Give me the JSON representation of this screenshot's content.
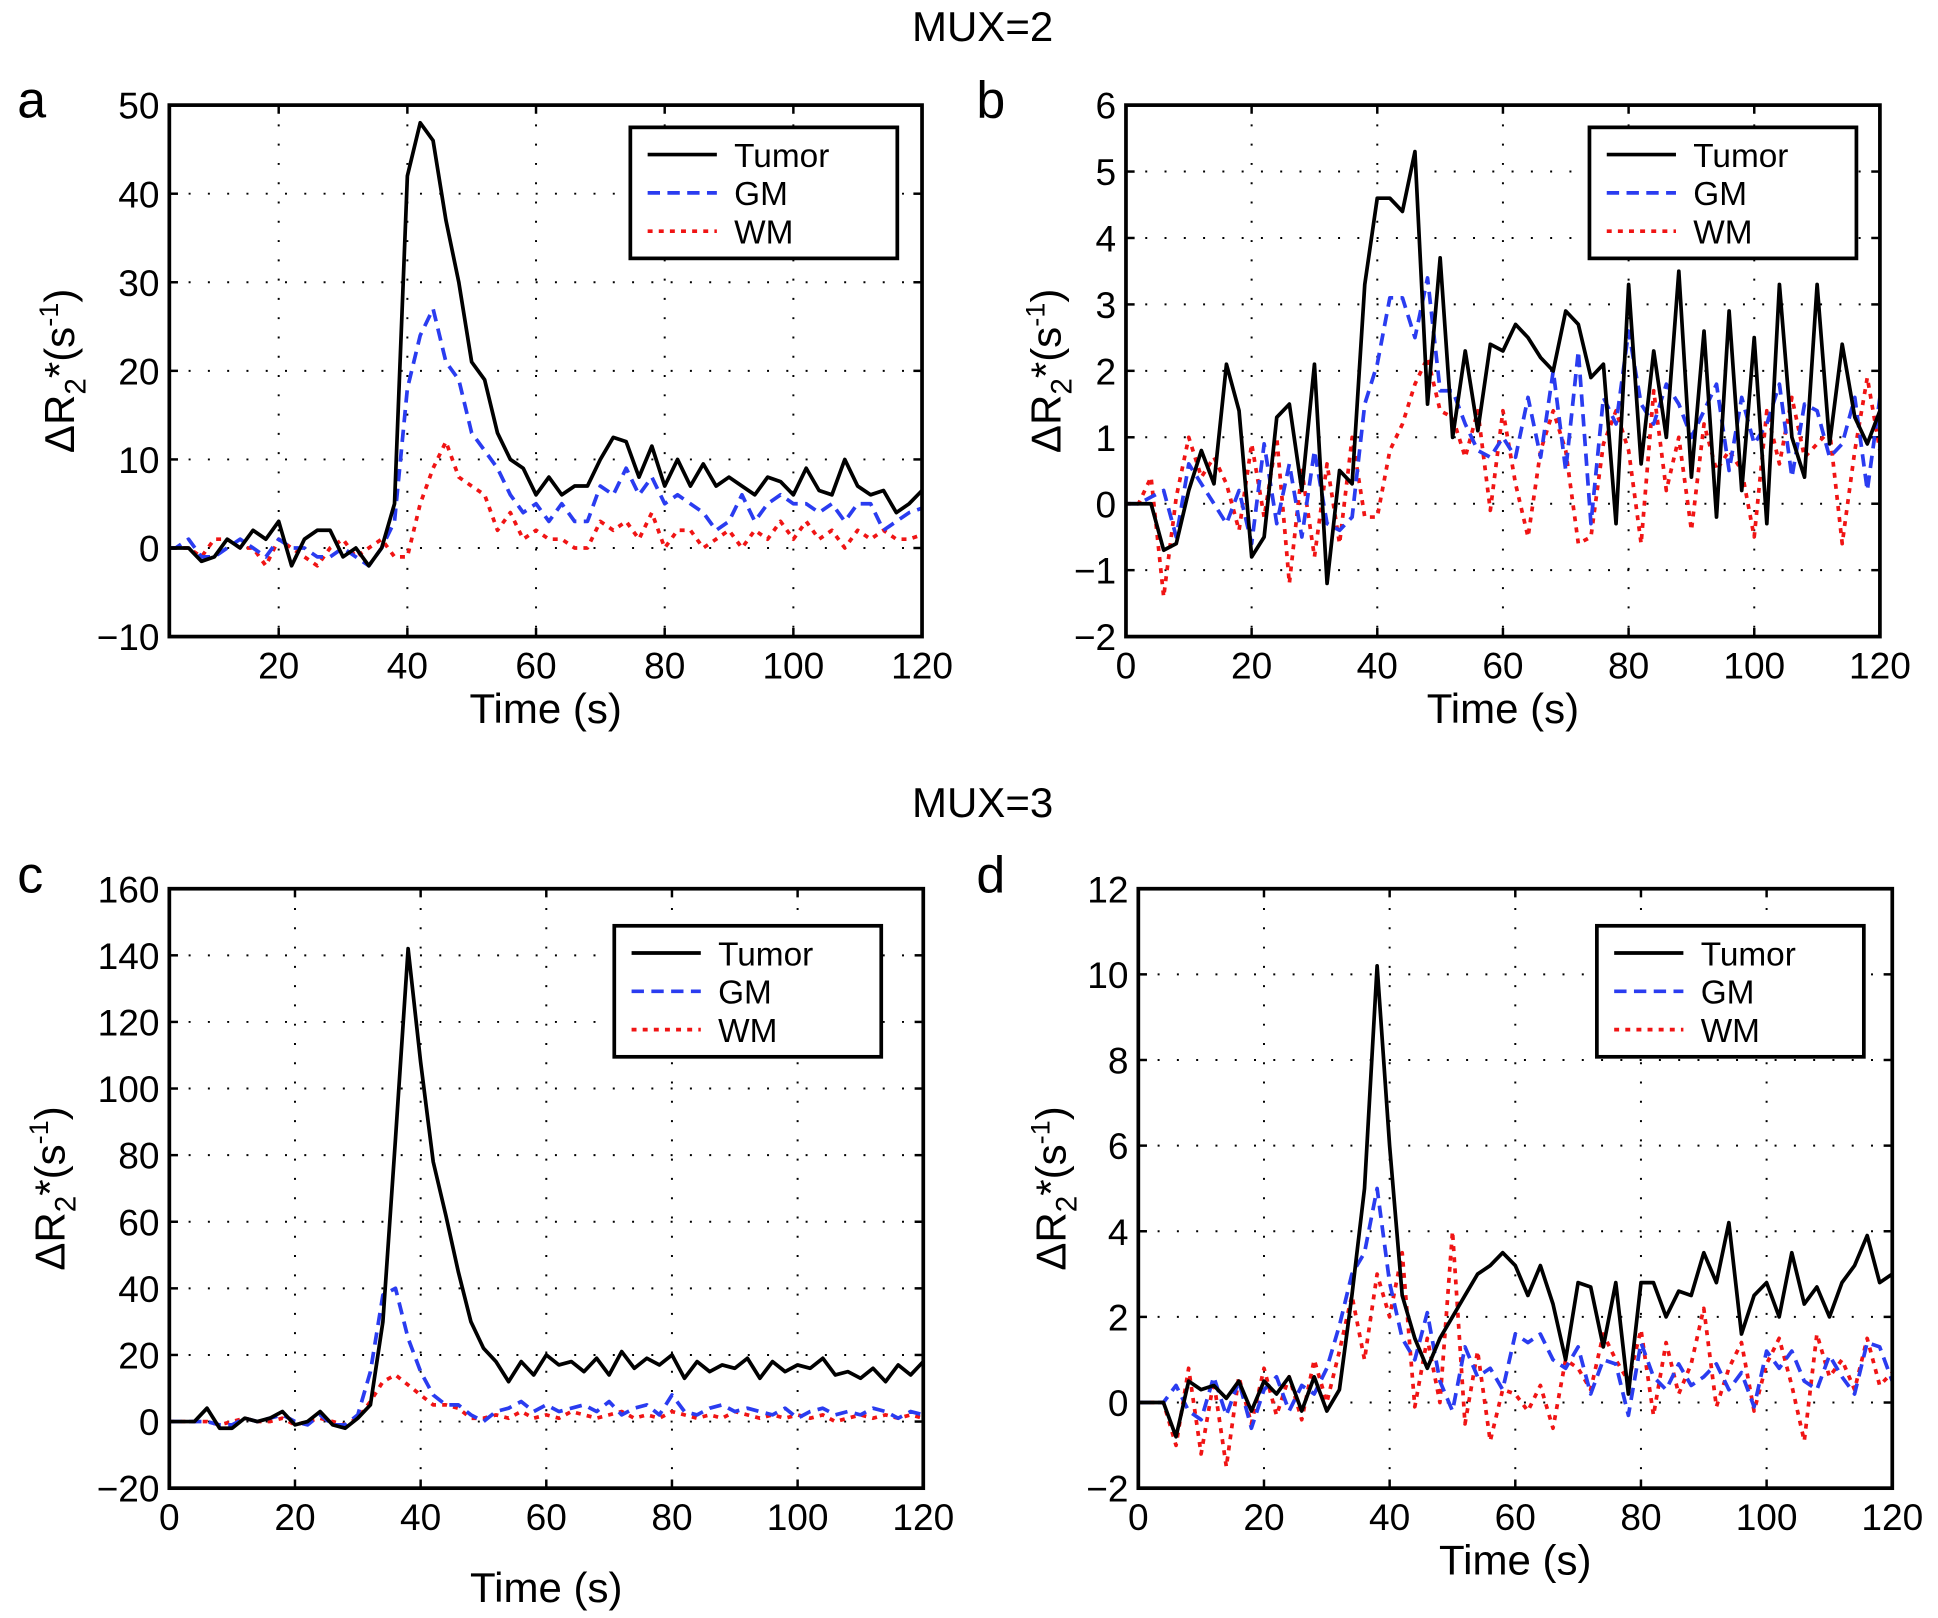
{
  "titles": {
    "mux2": "MUX=2",
    "mux3": "MUX=3"
  },
  "ylabel_parts": {
    "base": "ΔR",
    "sub": "2",
    "mid": "*(s",
    "sup": "-1",
    "end": ")"
  },
  "colors": {
    "Tumor": "#000000",
    "GM": "#2a3cf0",
    "WM": "#f01414"
  },
  "chart_data": [
    {
      "type": "line",
      "panel": "a",
      "title": "MUX=2",
      "xlabel": "Time (s)",
      "ylabel": "ΔR2*(s-1)",
      "xlim": [
        3,
        120
      ],
      "ylim": [
        -10,
        50
      ],
      "xticks": [
        20,
        40,
        60,
        80,
        100,
        120
      ],
      "yticks": [
        -10,
        0,
        10,
        20,
        30,
        40,
        50
      ],
      "grid": true,
      "legend": "top-right",
      "x_step": 2,
      "series": [
        {
          "name": "Tumor",
          "style": "solid",
          "values": [
            0,
            0,
            0,
            0,
            -1.5,
            -1,
            1,
            0,
            2,
            1,
            3,
            -2,
            1,
            2,
            2,
            -1,
            0,
            -2,
            0,
            5,
            42,
            48,
            46,
            37,
            30,
            21,
            19,
            13,
            10,
            9,
            6,
            8,
            6,
            7,
            7,
            10,
            12.5,
            12,
            8,
            11.5,
            7,
            10,
            7,
            9.5,
            7,
            8,
            7,
            6,
            8,
            7.5,
            6,
            9,
            6.5,
            6,
            10,
            7,
            6,
            6.5,
            4,
            5,
            6.5
          ]
        },
        {
          "name": "GM",
          "style": "dashed",
          "values": [
            0,
            0,
            0,
            1,
            -1,
            -1,
            0,
            1,
            0,
            -1,
            1,
            0,
            0,
            -1,
            -1,
            0,
            -1,
            -2,
            0,
            3,
            18,
            24,
            27,
            21,
            19,
            13,
            11,
            9,
            6,
            4,
            5,
            3,
            5,
            3,
            3,
            7,
            6,
            9,
            6,
            8,
            5,
            6,
            5,
            4,
            2,
            3,
            6,
            3,
            5,
            6,
            5,
            5,
            4,
            5,
            3,
            5,
            5,
            2,
            3,
            4,
            4.5
          ]
        },
        {
          "name": "WM",
          "style": "dotted",
          "values": [
            0,
            0,
            0,
            0,
            -1,
            1,
            1,
            0,
            0,
            -2,
            1,
            0,
            -1,
            -2,
            0,
            1,
            -1,
            0,
            1,
            -1,
            -1,
            5,
            9,
            12,
            8,
            7,
            6,
            2,
            4,
            1,
            2,
            1,
            1,
            0,
            0,
            3,
            2,
            3,
            1,
            4,
            0,
            2,
            2,
            0,
            1,
            2,
            0,
            2,
            1,
            3,
            1,
            3,
            1,
            2,
            0,
            2,
            1,
            2,
            1,
            1,
            1.5
          ]
        }
      ]
    },
    {
      "type": "line",
      "panel": "b",
      "title": "MUX=2",
      "xlabel": "Time (s)",
      "ylabel": "ΔR2*(s-1)",
      "xlim": [
        0,
        120
      ],
      "ylim": [
        -2,
        6
      ],
      "xticks": [
        0,
        20,
        40,
        60,
        80,
        100,
        120
      ],
      "yticks": [
        -2,
        -1,
        0,
        1,
        2,
        3,
        4,
        5,
        6
      ],
      "grid": true,
      "legend": "top-right",
      "x_step": 2,
      "series": [
        {
          "name": "Tumor",
          "style": "solid",
          "values": [
            0,
            0,
            0,
            -0.7,
            -0.6,
            0.2,
            0.8,
            0.3,
            2.1,
            1.4,
            -0.8,
            -0.5,
            1.3,
            1.5,
            0.2,
            2.1,
            -1.2,
            0.5,
            0.3,
            3.3,
            4.6,
            4.6,
            4.4,
            5.3,
            1.5,
            3.7,
            1,
            2.3,
            1.1,
            2.4,
            2.3,
            2.7,
            2.5,
            2.2,
            2,
            2.9,
            2.7,
            1.9,
            2.1,
            -0.3,
            3.3,
            0.6,
            2.3,
            1,
            3.5,
            0.4,
            2.6,
            -0.2,
            2.9,
            0.2,
            2.5,
            -0.3,
            3.3,
            1,
            0.4,
            3.3,
            0.9,
            2.4,
            1.3,
            0.9,
            1.4
          ]
        },
        {
          "name": "GM",
          "style": "dashed",
          "values": [
            0,
            0,
            0.1,
            0.2,
            -0.5,
            0.6,
            0.3,
            0,
            -0.3,
            0.2,
            -0.6,
            0.9,
            -0.3,
            0.6,
            -0.5,
            0.8,
            -0.3,
            -0.4,
            -0.2,
            1.5,
            2.1,
            3.1,
            3.1,
            2.5,
            3.4,
            1.7,
            1.7,
            1.2,
            0.8,
            0.7,
            1,
            0.7,
            1.6,
            0.7,
            2,
            0.5,
            2.3,
            -0.3,
            1.6,
            1.2,
            2.6,
            1.5,
            1.2,
            1.8,
            1.5,
            1,
            1.4,
            1.8,
            0.5,
            1.6,
            0.9,
            1.2,
            1.8,
            0.4,
            1.5,
            1.4,
            0.7,
            0.9,
            1.6,
            0.2,
            1.6
          ]
        },
        {
          "name": "WM",
          "style": "dotted",
          "values": [
            0,
            0,
            0.4,
            -1.4,
            0.1,
            1,
            0.4,
            0.7,
            0.3,
            -0.4,
            0.9,
            -0.2,
            1,
            -1.2,
            0.5,
            -0.8,
            0.6,
            -0.6,
            1,
            -0.2,
            -0.2,
            0.8,
            1.2,
            1.8,
            2.2,
            1.4,
            1.3,
            0.7,
            1.4,
            -0.1,
            1.4,
            0.3,
            -0.5,
            0.8,
            1.4,
            0.8,
            -0.6,
            -0.5,
            0.9,
            1.4,
            0.8,
            -0.6,
            1.7,
            0.2,
            1,
            -0.4,
            1.2,
            0.5,
            0.8,
            0.5,
            -0.5,
            1.4,
            0.6,
            1.6,
            0.7,
            0.9,
            1.1,
            -0.6,
            0.8,
            1.9,
            0.8
          ]
        }
      ]
    },
    {
      "type": "line",
      "panel": "c",
      "title": "MUX=3",
      "xlabel": "Time (s)",
      "ylabel": "ΔR2*(s-1)",
      "xlim": [
        0,
        120
      ],
      "ylim": [
        -20,
        160
      ],
      "xticks": [
        0,
        20,
        40,
        60,
        80,
        100,
        120
      ],
      "yticks": [
        -20,
        0,
        20,
        40,
        60,
        80,
        100,
        120,
        140,
        160
      ],
      "grid": true,
      "legend": "top-right",
      "x_step": 2,
      "series": [
        {
          "name": "Tumor",
          "style": "solid",
          "values": [
            0,
            0,
            0,
            4,
            -2,
            -2,
            1,
            0,
            1,
            3,
            -1,
            0,
            3,
            -1,
            -2,
            1,
            5,
            30,
            85,
            142,
            108,
            78,
            62,
            45,
            30,
            22,
            18,
            12,
            18,
            14,
            20,
            17,
            18,
            15,
            19,
            14,
            21,
            16,
            19,
            17,
            20,
            13,
            18,
            15,
            17,
            16,
            19,
            13,
            18,
            15,
            17,
            16,
            19,
            14,
            15,
            13,
            16,
            12,
            17,
            14,
            18
          ]
        },
        {
          "name": "GM",
          "style": "dashed",
          "values": [
            0,
            0,
            0,
            0,
            -1,
            -1,
            1,
            0,
            1,
            2,
            0,
            -1,
            2,
            -1,
            -1,
            2,
            15,
            38,
            40,
            25,
            15,
            8,
            5,
            5,
            2,
            0,
            3,
            4,
            6,
            3,
            5,
            3,
            4,
            5,
            3,
            6,
            2,
            4,
            5,
            2,
            8,
            3,
            2,
            4,
            5,
            3,
            4,
            3,
            2,
            4,
            1,
            3,
            4,
            2,
            3,
            2,
            4,
            3,
            1,
            3,
            2
          ]
        },
        {
          "name": "WM",
          "style": "dotted",
          "values": [
            0,
            0,
            0,
            0,
            -1,
            0,
            1,
            0,
            0,
            1,
            -1,
            0,
            1,
            0,
            -1,
            1,
            6,
            12,
            14,
            11,
            8,
            5,
            5,
            4,
            1,
            1,
            2,
            1,
            3,
            1,
            2,
            1,
            3,
            2,
            1,
            2,
            3,
            1,
            2,
            1,
            3,
            2,
            1,
            2,
            1,
            3,
            2,
            1,
            2,
            1,
            2,
            1,
            2,
            0,
            1,
            2,
            1,
            2,
            1,
            2,
            1
          ]
        }
      ]
    },
    {
      "type": "line",
      "panel": "d",
      "title": "MUX=3",
      "xlabel": "Time (s)",
      "ylabel": "ΔR2*(s-1)",
      "xlim": [
        0,
        120
      ],
      "ylim": [
        -2,
        12
      ],
      "xticks": [
        0,
        20,
        40,
        60,
        80,
        100,
        120
      ],
      "yticks": [
        -2,
        0,
        2,
        4,
        6,
        8,
        10,
        12
      ],
      "grid": true,
      "legend": "top-right",
      "x_step": 2,
      "series": [
        {
          "name": "Tumor",
          "style": "solid",
          "values": [
            0,
            0,
            0,
            -0.8,
            0.5,
            0.3,
            0.4,
            0.1,
            0.5,
            -0.2,
            0.5,
            0.2,
            0.6,
            -0.2,
            0.6,
            -0.2,
            0.3,
            2.5,
            5,
            10.2,
            6,
            2.5,
            1.5,
            0.8,
            1.5,
            2,
            2.5,
            3,
            3.2,
            3.5,
            3.2,
            2.5,
            3.2,
            2.3,
            1,
            2.8,
            2.7,
            1.3,
            2.8,
            0.2,
            2.8,
            2.8,
            2,
            2.6,
            2.5,
            3.5,
            2.8,
            4.2,
            1.6,
            2.5,
            2.8,
            2,
            3.5,
            2.3,
            2.7,
            2,
            2.8,
            3.2,
            3.9,
            2.8,
            3
          ]
        },
        {
          "name": "GM",
          "style": "dashed",
          "values": [
            0,
            0,
            0,
            0.4,
            -0.2,
            -0.4,
            0.6,
            -0.3,
            0.5,
            -0.6,
            0.3,
            0.6,
            -0.2,
            0.4,
            0.2,
            0.8,
            1.8,
            3,
            3.5,
            5,
            2.8,
            1.5,
            1,
            2.1,
            0.5,
            -0.2,
            1.3,
            0.6,
            0.8,
            0.3,
            1.6,
            1.4,
            1.6,
            1,
            0.8,
            1.3,
            0.2,
            1,
            0.9,
            -0.3,
            1.4,
            0.6,
            0.3,
            0.9,
            0.4,
            0.6,
            0.9,
            0.3,
            0.7,
            -0.1,
            1.2,
            0.8,
            1.2,
            0.5,
            0.3,
            1.1,
            0.6,
            0.2,
            1.4,
            1.3,
            0.5
          ]
        },
        {
          "name": "WM",
          "style": "dotted",
          "values": [
            0,
            0,
            0,
            -1,
            0.8,
            -1.2,
            0.5,
            -1.5,
            0.6,
            -0.5,
            0.8,
            -0.3,
            0.6,
            -0.4,
            1,
            0,
            1.2,
            2.5,
            1,
            3,
            2,
            3.5,
            -0.1,
            1.5,
            0,
            4,
            -0.5,
            1.2,
            -0.9,
            0.3,
            0.2,
            -0.2,
            0.4,
            -0.6,
            1,
            0.8,
            0.3,
            1.6,
            1,
            0.5,
            1.7,
            -0.3,
            1.4,
            0.2,
            0.9,
            2.2,
            -0.1,
            0.8,
            1.4,
            -0.2,
            0.9,
            1.5,
            0.4,
            -0.9,
            1.6,
            0.6,
            1,
            0.3,
            1.5,
            0.4,
            0.7
          ]
        }
      ]
    }
  ]
}
